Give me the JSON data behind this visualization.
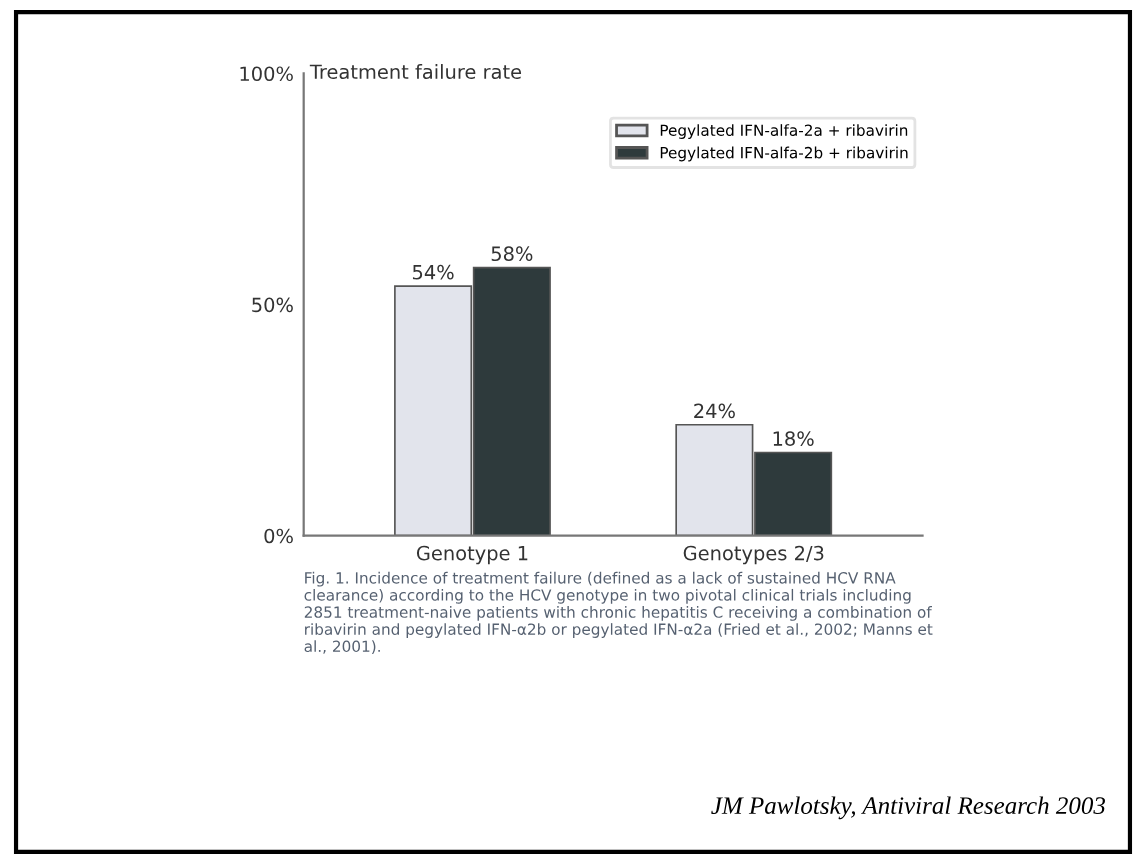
{
  "chart_data": {
    "type": "bar",
    "ylabel": "Treatment failure rate",
    "categories": [
      "Genotype 1",
      "Genotypes 2/3"
    ],
    "series": [
      {
        "name": "Pegylated IFN-alfa-2a + ribavirin",
        "color": "#e2e4ec",
        "values": [
          54,
          24
        ],
        "value_labels": [
          "54%",
          "24%"
        ]
      },
      {
        "name": "Pegylated IFN-alfa-2b + ribavirin",
        "color": "#2e3a3c",
        "values": [
          58,
          18
        ],
        "value_labels": [
          "58%",
          "18%"
        ]
      }
    ],
    "ylim": [
      0,
      100
    ],
    "yticks": [
      {
        "value": 0,
        "label": "0%"
      },
      {
        "value": 50,
        "label": "50%"
      },
      {
        "value": 100,
        "label": "100%"
      }
    ],
    "grid": false,
    "legend": "top right",
    "annotations": [
      "Fig. 1. Incidence of treatment failure (defined as a lack of sustained HCV RNA clearance) according to the HCV genotype in two pivotal clinical trials including 2851 treatment-naive patients with chronic hepatitis C receiving a combination of ribavirin and pegylated IFN-α2b or pegylated IFN-α2a (Fried et al., 2002; Manns et al., 2001).",
      "JM Pawlotsky, Antiviral Research 2003"
    ]
  }
}
